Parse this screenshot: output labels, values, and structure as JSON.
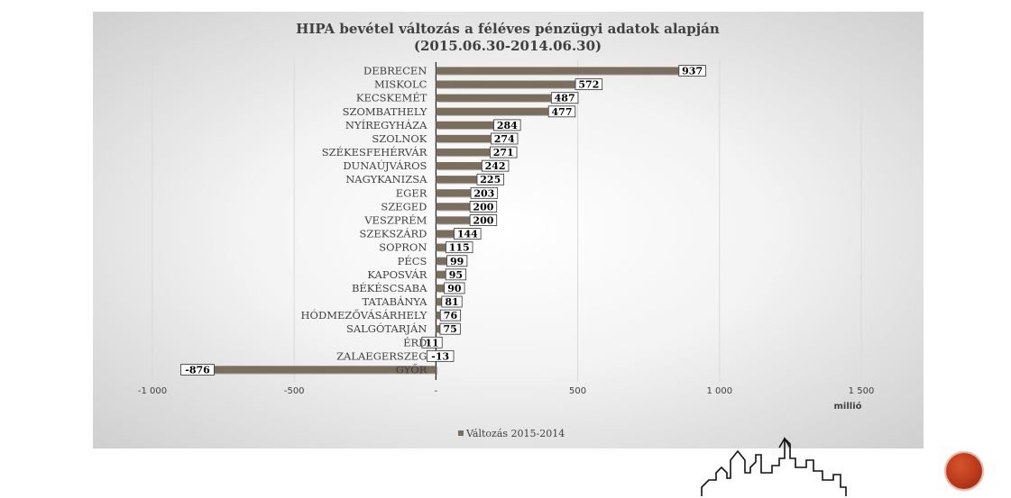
{
  "chart_data": {
    "type": "bar",
    "orientation": "horizontal",
    "title_line1": "HIPA bevétel változás a féléves pénzügyi adatok alapján",
    "title_line2": "(2015.06.30-2014.06.30)",
    "categories": [
      "DEBRECEN",
      "MISKOLC",
      "KECSKEMÉT",
      "SZOMBATHELY",
      "NYÍREGYHÁZA",
      "SZOLNOK",
      "SZÉKESFEHÉRVÁR",
      "DUNAÚJVÁROS",
      "NAGYKANIZSA",
      "EGER",
      "SZEGED",
      "VESZPRÉM",
      "SZEKSZÁRD",
      "SOPRON",
      "PÉCS",
      "KAPOSVÁR",
      "BÉKÉSCSABA",
      "TATABÁNYA",
      "HÓDMEZŐVÁSÁRHELY",
      "SALGÓTARJÁN",
      "ÉRD",
      "ZALAEGERSZEG",
      "GYŐR"
    ],
    "series": [
      {
        "name": "Változás 2015-2014",
        "values": [
          937,
          572,
          487,
          477,
          284,
          274,
          271,
          242,
          225,
          203,
          200,
          200,
          144,
          115,
          99,
          95,
          90,
          81,
          76,
          75,
          11,
          -13,
          -876
        ]
      }
    ],
    "data_labels": [
      "937",
      "572",
      "487",
      "477",
      "284",
      "274",
      "271",
      "242",
      "225",
      "203",
      "200",
      "200",
      "144",
      "115",
      "99",
      "95",
      "90",
      "81",
      "76",
      "75",
      "11",
      "-13",
      "-876"
    ],
    "xlim": [
      -1000,
      1500
    ],
    "xticks": [
      -1000,
      -500,
      0,
      500,
      1000,
      1500
    ],
    "xtick_labels": [
      "-1 000",
      "-500",
      "-",
      "500",
      "1 000",
      "1 500"
    ],
    "xlabel": "millió",
    "grid": "vertical",
    "legend_position": "bottom",
    "bar_color": "#7a6e5f"
  }
}
